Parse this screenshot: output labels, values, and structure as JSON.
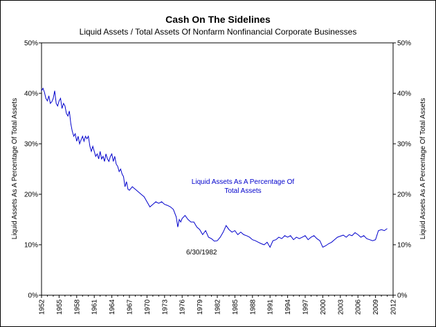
{
  "chart_data": {
    "type": "line",
    "title": "Cash On The Sidelines",
    "subtitle": "Liquid Assets / Total Assets Of Nonfarm Nonfinancial Corporate Businesses",
    "ylabel_left": "Liquid Assets As A Percentage Of Total Assets",
    "ylabel_right": "Liquid Assets As A Percentage Of Total Assets",
    "xlim": [
      1952,
      2012
    ],
    "ylim": [
      0,
      50
    ],
    "x_ticks": [
      1952,
      1955,
      1958,
      1961,
      1964,
      1967,
      1970,
      1973,
      1976,
      1979,
      1982,
      1985,
      1988,
      1991,
      1994,
      1997,
      2000,
      2003,
      2006,
      2009,
      2012
    ],
    "y_ticks": [
      0,
      10,
      20,
      30,
      40,
      50
    ],
    "y_tick_labels": [
      "0%",
      "10%",
      "20%",
      "30%",
      "40%",
      "50%"
    ],
    "line_color": "#0000cc",
    "grid": false,
    "series": [
      {
        "x": [
          1952.0,
          1952.25,
          1952.5,
          1952.75,
          1953.0,
          1953.25,
          1953.5,
          1953.75,
          1954.0,
          1954.25,
          1954.5,
          1954.75,
          1955.0,
          1955.25,
          1955.5,
          1955.75,
          1956.0,
          1956.25,
          1956.5,
          1956.75,
          1957.0,
          1957.25,
          1957.5,
          1957.75,
          1958.0,
          1958.25,
          1958.5,
          1958.75,
          1959.0,
          1959.25,
          1959.5,
          1959.75,
          1960.0,
          1960.25,
          1960.5,
          1960.75,
          1961.0,
          1961.25,
          1961.5,
          1961.75,
          1962.0,
          1962.25,
          1962.5,
          1962.75,
          1963.0,
          1963.25,
          1963.5,
          1963.75,
          1964.0,
          1964.25,
          1964.5,
          1964.75,
          1965.0,
          1965.25,
          1965.5,
          1965.75,
          1966.0,
          1966.25,
          1966.5,
          1966.75,
          1967.0,
          1967.5,
          1968.0,
          1968.5,
          1969.0,
          1969.5,
          1970.0,
          1970.5,
          1971.0,
          1971.5,
          1972.0,
          1972.5,
          1973.0,
          1973.5,
          1974.0,
          1974.5,
          1975.0,
          1975.25,
          1975.5,
          1975.75,
          1976.0,
          1976.5,
          1977.0,
          1977.5,
          1978.0,
          1978.5,
          1979.0,
          1979.5,
          1980.0,
          1980.5,
          1981.0,
          1981.5,
          1982.0,
          1982.5,
          1983.0,
          1983.5,
          1984.0,
          1984.5,
          1985.0,
          1985.5,
          1986.0,
          1986.5,
          1987.0,
          1987.5,
          1988.0,
          1988.5,
          1989.0,
          1989.5,
          1990.0,
          1990.5,
          1991.0,
          1991.5,
          1992.0,
          1992.5,
          1993.0,
          1993.5,
          1994.0,
          1994.5,
          1995.0,
          1995.5,
          1996.0,
          1996.5,
          1997.0,
          1997.5,
          1998.0,
          1998.5,
          1999.0,
          1999.5,
          2000.0,
          2000.5,
          2001.0,
          2001.5,
          2002.0,
          2002.5,
          2003.0,
          2003.5,
          2004.0,
          2004.5,
          2005.0,
          2005.5,
          2006.0,
          2006.5,
          2007.0,
          2007.5,
          2008.0,
          2008.5,
          2009.0,
          2009.5,
          2010.0,
          2010.5,
          2011.0
        ],
        "y": [
          40.5,
          41.0,
          40.2,
          39.0,
          38.5,
          39.5,
          38.0,
          38.3,
          39.0,
          40.5,
          38.0,
          37.5,
          38.5,
          39.0,
          37.0,
          38.0,
          37.5,
          36.0,
          35.5,
          36.5,
          34.0,
          32.5,
          31.5,
          32.0,
          30.5,
          31.5,
          30.0,
          30.8,
          31.5,
          30.5,
          31.5,
          31.0,
          31.5,
          29.5,
          28.5,
          29.5,
          28.5,
          27.5,
          28.0,
          27.0,
          28.5,
          27.0,
          27.5,
          26.5,
          28.0,
          27.0,
          26.5,
          27.5,
          28.0,
          26.5,
          27.5,
          26.0,
          25.5,
          24.5,
          25.0,
          24.0,
          23.5,
          21.5,
          22.5,
          21.0,
          20.8,
          21.5,
          21.0,
          20.5,
          20.0,
          19.5,
          18.5,
          17.5,
          18.0,
          18.5,
          18.2,
          18.5,
          18.0,
          17.8,
          17.5,
          17.0,
          15.5,
          13.5,
          15.0,
          14.5,
          15.2,
          15.8,
          15.0,
          14.5,
          14.5,
          13.5,
          13.0,
          12.0,
          12.8,
          11.5,
          11.2,
          10.7,
          10.8,
          11.5,
          12.5,
          13.8,
          13.0,
          12.5,
          12.8,
          12.0,
          12.5,
          12.0,
          11.8,
          11.5,
          11.0,
          10.8,
          10.5,
          10.2,
          10.0,
          10.5,
          9.5,
          10.8,
          11.0,
          11.5,
          11.2,
          11.8,
          11.5,
          11.8,
          11.0,
          11.5,
          11.2,
          11.5,
          11.8,
          11.0,
          11.5,
          11.8,
          11.2,
          10.8,
          9.5,
          9.8,
          10.2,
          10.5,
          11.0,
          11.5,
          11.7,
          11.9,
          11.5,
          12.0,
          11.8,
          12.4,
          12.0,
          11.5,
          11.8,
          11.2,
          11.0,
          10.8,
          11.0,
          12.8,
          13.0,
          12.8,
          13.2
        ]
      }
    ],
    "annotations": [
      {
        "text_lines": [
          "Liquid Assets As A Percentage Of",
          "Total Assets"
        ],
        "color": "#0000cc"
      },
      {
        "text_lines": [
          "6/30/1982"
        ],
        "color": "#000000"
      }
    ]
  }
}
